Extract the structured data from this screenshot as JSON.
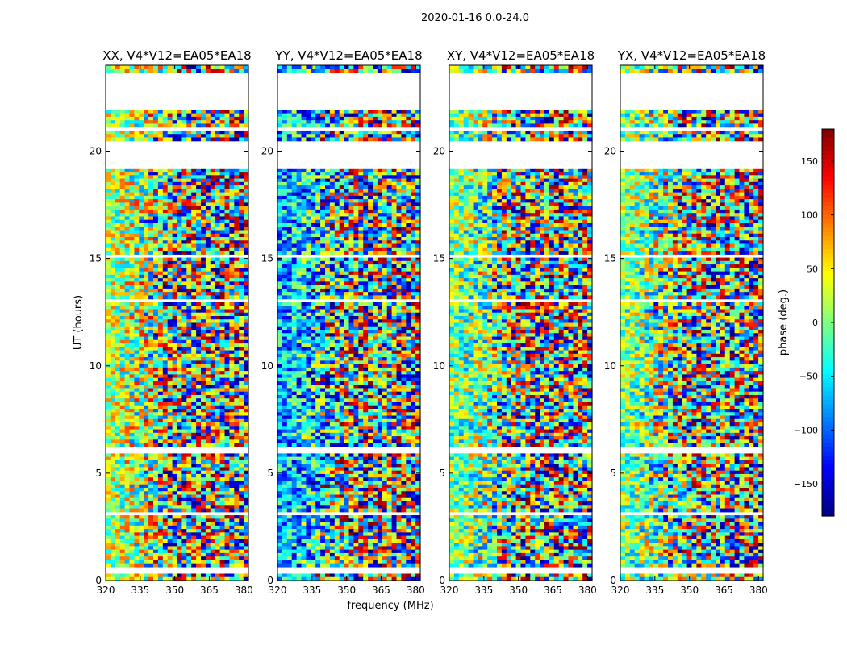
{
  "chart_data": {
    "type": "heatmap",
    "suptitle": "2020-01-16 0.0-24.0",
    "xlabel": "frequency (MHz)",
    "ylabel": "UT (hours)",
    "xlim": [
      320,
      382
    ],
    "ylim": [
      0,
      24
    ],
    "xticks": [
      320,
      335,
      350,
      365,
      380
    ],
    "yticks": [
      0,
      5,
      10,
      15,
      20
    ],
    "colorbar": {
      "label": "phase (deg.)",
      "range": [
        -180,
        180
      ],
      "ticks": [
        150,
        100,
        50,
        0,
        -50,
        -100,
        -150
      ],
      "tick_labels": [
        "150",
        "100",
        "50",
        "0",
        "−50",
        "−100",
        "−150"
      ],
      "colormap": "jet"
    },
    "panels": [
      {
        "title": "XX, V4*V12=EA05*EA18",
        "base_phase": 20
      },
      {
        "title": "YY, V4*V12=EA05*EA18",
        "base_phase": -70
      },
      {
        "title": "XY, V4*V12=EA05*EA18",
        "base_phase": 0
      },
      {
        "title": "YX, V4*V12=EA05*EA18",
        "base_phase": 0
      }
    ],
    "flagged_time_ranges_hours": [
      [
        0.3,
        0.6
      ],
      [
        3.05,
        3.25
      ],
      [
        5.95,
        6.2
      ],
      [
        12.95,
        13.1
      ],
      [
        15.0,
        15.2
      ],
      [
        19.2,
        20.5
      ],
      [
        20.9,
        21.1
      ],
      [
        21.9,
        23.6
      ]
    ],
    "grid": false
  }
}
